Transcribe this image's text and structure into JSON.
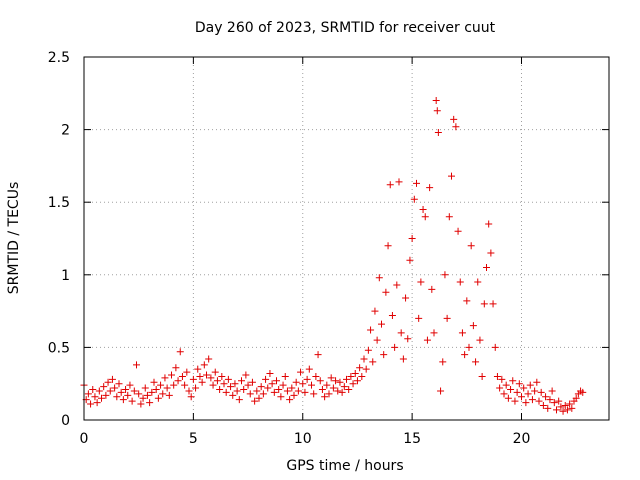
{
  "chart_data": {
    "type": "scatter",
    "title": "Day 260 of 2023, SRMTID for receiver cuut",
    "xlabel": "GPS time / hours",
    "ylabel": "SRMTID / TECUs",
    "xlim": [
      0,
      24
    ],
    "ylim": [
      0,
      2.5
    ],
    "x_ticks": [
      0,
      5,
      10,
      15,
      20
    ],
    "x_tick_labels": [
      "0",
      "5",
      "10",
      "15",
      "20"
    ],
    "y_ticks": [
      0,
      0.5,
      1,
      1.5,
      2,
      2.5
    ],
    "y_tick_labels": [
      "0",
      "0.5",
      "1",
      "1.5",
      "2",
      "2.5"
    ],
    "grid": true,
    "marker": "plus",
    "marker_color": "#e00000",
    "series": [
      {
        "name": "SRMTID",
        "points": [
          [
            0.0,
            0.24
          ],
          [
            0.1,
            0.14
          ],
          [
            0.2,
            0.18
          ],
          [
            0.3,
            0.11
          ],
          [
            0.4,
            0.21
          ],
          [
            0.5,
            0.16
          ],
          [
            0.6,
            0.12
          ],
          [
            0.7,
            0.2
          ],
          [
            0.8,
            0.15
          ],
          [
            0.9,
            0.23
          ],
          [
            1.0,
            0.17
          ],
          [
            1.1,
            0.26
          ],
          [
            1.2,
            0.2
          ],
          [
            1.3,
            0.28
          ],
          [
            1.4,
            0.22
          ],
          [
            1.5,
            0.16
          ],
          [
            1.6,
            0.25
          ],
          [
            1.7,
            0.19
          ],
          [
            1.8,
            0.14
          ],
          [
            1.9,
            0.21
          ],
          [
            2.0,
            0.17
          ],
          [
            2.1,
            0.24
          ],
          [
            2.2,
            0.13
          ],
          [
            2.3,
            0.2
          ],
          [
            2.4,
            0.38
          ],
          [
            2.5,
            0.18
          ],
          [
            2.6,
            0.11
          ],
          [
            2.7,
            0.15
          ],
          [
            2.8,
            0.22
          ],
          [
            2.9,
            0.17
          ],
          [
            3.0,
            0.12
          ],
          [
            3.1,
            0.19
          ],
          [
            3.2,
            0.26
          ],
          [
            3.3,
            0.21
          ],
          [
            3.4,
            0.15
          ],
          [
            3.5,
            0.24
          ],
          [
            3.6,
            0.18
          ],
          [
            3.7,
            0.29
          ],
          [
            3.8,
            0.22
          ],
          [
            3.9,
            0.17
          ],
          [
            4.0,
            0.31
          ],
          [
            4.1,
            0.24
          ],
          [
            4.2,
            0.36
          ],
          [
            4.3,
            0.27
          ],
          [
            4.4,
            0.47
          ],
          [
            4.5,
            0.3
          ],
          [
            4.6,
            0.24
          ],
          [
            4.7,
            0.33
          ],
          [
            4.8,
            0.2
          ],
          [
            4.9,
            0.16
          ],
          [
            5.0,
            0.28
          ],
          [
            5.1,
            0.22
          ],
          [
            5.2,
            0.35
          ],
          [
            5.3,
            0.3
          ],
          [
            5.4,
            0.26
          ],
          [
            5.5,
            0.38
          ],
          [
            5.6,
            0.31
          ],
          [
            5.7,
            0.42
          ],
          [
            5.8,
            0.29
          ],
          [
            5.9,
            0.24
          ],
          [
            6.0,
            0.33
          ],
          [
            6.1,
            0.27
          ],
          [
            6.2,
            0.21
          ],
          [
            6.3,
            0.3
          ],
          [
            6.4,
            0.25
          ],
          [
            6.5,
            0.19
          ],
          [
            6.6,
            0.28
          ],
          [
            6.7,
            0.23
          ],
          [
            6.8,
            0.17
          ],
          [
            6.9,
            0.25
          ],
          [
            7.0,
            0.2
          ],
          [
            7.1,
            0.14
          ],
          [
            7.2,
            0.27
          ],
          [
            7.3,
            0.21
          ],
          [
            7.4,
            0.31
          ],
          [
            7.5,
            0.24
          ],
          [
            7.6,
            0.18
          ],
          [
            7.7,
            0.26
          ],
          [
            7.8,
            0.13
          ],
          [
            7.9,
            0.2
          ],
          [
            8.0,
            0.15
          ],
          [
            8.1,
            0.23
          ],
          [
            8.2,
            0.18
          ],
          [
            8.3,
            0.28
          ],
          [
            8.4,
            0.22
          ],
          [
            8.5,
            0.32
          ],
          [
            8.6,
            0.25
          ],
          [
            8.7,
            0.19
          ],
          [
            8.8,
            0.27
          ],
          [
            8.9,
            0.21
          ],
          [
            9.0,
            0.16
          ],
          [
            9.1,
            0.24
          ],
          [
            9.2,
            0.3
          ],
          [
            9.3,
            0.2
          ],
          [
            9.4,
            0.14
          ],
          [
            9.5,
            0.22
          ],
          [
            9.6,
            0.17
          ],
          [
            9.7,
            0.26
          ],
          [
            9.8,
            0.2
          ],
          [
            9.9,
            0.33
          ],
          [
            10.0,
            0.25
          ],
          [
            10.1,
            0.19
          ],
          [
            10.2,
            0.28
          ],
          [
            10.3,
            0.35
          ],
          [
            10.4,
            0.24
          ],
          [
            10.5,
            0.18
          ],
          [
            10.6,
            0.3
          ],
          [
            10.7,
            0.45
          ],
          [
            10.8,
            0.27
          ],
          [
            10.9,
            0.21
          ],
          [
            11.0,
            0.16
          ],
          [
            11.1,
            0.24
          ],
          [
            11.2,
            0.18
          ],
          [
            11.3,
            0.29
          ],
          [
            11.4,
            0.22
          ],
          [
            11.5,
            0.27
          ],
          [
            11.6,
            0.2
          ],
          [
            11.7,
            0.26
          ],
          [
            11.8,
            0.19
          ],
          [
            11.9,
            0.23
          ],
          [
            12.0,
            0.28
          ],
          [
            12.1,
            0.21
          ],
          [
            12.2,
            0.3
          ],
          [
            12.3,
            0.25
          ],
          [
            12.4,
            0.32
          ],
          [
            12.5,
            0.27
          ],
          [
            12.6,
            0.36
          ],
          [
            12.7,
            0.3
          ],
          [
            12.8,
            0.42
          ],
          [
            12.9,
            0.35
          ],
          [
            13.0,
            0.48
          ],
          [
            13.1,
            0.62
          ],
          [
            13.2,
            0.4
          ],
          [
            13.3,
            0.75
          ],
          [
            13.4,
            0.55
          ],
          [
            13.5,
            0.98
          ],
          [
            13.6,
            0.66
          ],
          [
            13.7,
            0.45
          ],
          [
            13.8,
            0.88
          ],
          [
            13.9,
            1.2
          ],
          [
            14.0,
            1.62
          ],
          [
            14.1,
            0.72
          ],
          [
            14.2,
            0.5
          ],
          [
            14.3,
            0.93
          ],
          [
            14.4,
            1.64
          ],
          [
            14.5,
            0.6
          ],
          [
            14.6,
            0.42
          ],
          [
            14.7,
            0.84
          ],
          [
            14.8,
            0.56
          ],
          [
            14.9,
            1.1
          ],
          [
            15.0,
            1.25
          ],
          [
            15.1,
            1.52
          ],
          [
            15.2,
            1.63
          ],
          [
            15.3,
            0.7
          ],
          [
            15.4,
            0.95
          ],
          [
            15.5,
            1.45
          ],
          [
            15.6,
            1.4
          ],
          [
            15.7,
            0.55
          ],
          [
            15.8,
            1.6
          ],
          [
            15.9,
            0.9
          ],
          [
            16.0,
            0.6
          ],
          [
            16.1,
            2.2
          ],
          [
            16.15,
            2.13
          ],
          [
            16.2,
            1.98
          ],
          [
            16.3,
            0.2
          ],
          [
            16.4,
            0.4
          ],
          [
            16.5,
            1.0
          ],
          [
            16.6,
            0.7
          ],
          [
            16.7,
            1.4
          ],
          [
            16.8,
            1.68
          ],
          [
            16.9,
            2.07
          ],
          [
            17.0,
            2.02
          ],
          [
            17.1,
            1.3
          ],
          [
            17.2,
            0.95
          ],
          [
            17.3,
            0.6
          ],
          [
            17.4,
            0.45
          ],
          [
            17.5,
            0.82
          ],
          [
            17.6,
            0.5
          ],
          [
            17.7,
            1.2
          ],
          [
            17.8,
            0.65
          ],
          [
            17.9,
            0.4
          ],
          [
            18.0,
            0.95
          ],
          [
            18.1,
            0.55
          ],
          [
            18.2,
            0.3
          ],
          [
            18.3,
            0.8
          ],
          [
            18.4,
            1.05
          ],
          [
            18.5,
            1.35
          ],
          [
            18.6,
            1.15
          ],
          [
            18.7,
            0.8
          ],
          [
            18.8,
            0.5
          ],
          [
            18.9,
            0.3
          ],
          [
            19.0,
            0.22
          ],
          [
            19.1,
            0.28
          ],
          [
            19.2,
            0.18
          ],
          [
            19.3,
            0.24
          ],
          [
            19.4,
            0.15
          ],
          [
            19.5,
            0.21
          ],
          [
            19.6,
            0.27
          ],
          [
            19.7,
            0.13
          ],
          [
            19.8,
            0.19
          ],
          [
            19.9,
            0.25
          ],
          [
            20.0,
            0.16
          ],
          [
            20.1,
            0.22
          ],
          [
            20.2,
            0.12
          ],
          [
            20.3,
            0.18
          ],
          [
            20.4,
            0.24
          ],
          [
            20.5,
            0.14
          ],
          [
            20.6,
            0.2
          ],
          [
            20.7,
            0.26
          ],
          [
            20.8,
            0.13
          ],
          [
            20.9,
            0.19
          ],
          [
            21.0,
            0.1
          ],
          [
            21.1,
            0.16
          ],
          [
            21.2,
            0.08
          ],
          [
            21.3,
            0.14
          ],
          [
            21.4,
            0.2
          ],
          [
            21.5,
            0.12
          ],
          [
            21.6,
            0.07
          ],
          [
            21.7,
            0.13
          ],
          [
            21.8,
            0.09
          ],
          [
            21.9,
            0.06
          ],
          [
            22.0,
            0.1
          ],
          [
            22.1,
            0.07
          ],
          [
            22.2,
            0.11
          ],
          [
            22.3,
            0.08
          ],
          [
            22.4,
            0.13
          ],
          [
            22.5,
            0.15
          ],
          [
            22.6,
            0.18
          ],
          [
            22.7,
            0.2
          ],
          [
            22.8,
            0.19
          ]
        ]
      }
    ]
  }
}
